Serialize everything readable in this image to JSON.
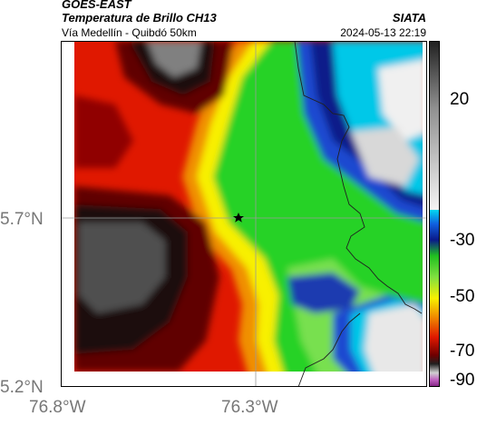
{
  "header": {
    "satellite": "GOES-EAST",
    "product": "Temperatura de Brillo CH13",
    "site": "Vía Medellín - Quibdó 50km",
    "source": "SIATA",
    "datetime": "2024-05-13 22:19"
  },
  "axes": {
    "lat_labels": [
      "5.7°N",
      "5.2°N"
    ],
    "lon_labels": [
      "76.8°W",
      "76.3°W"
    ]
  },
  "colorbar": {
    "labels": [
      "20",
      "-30",
      "-50",
      "-70",
      "-90"
    ]
  },
  "colors": {
    "cold_cloud": "#ffffff",
    "ice": "#00c8e8",
    "deep_blue": "#0a1a8a",
    "green": "#28d228",
    "yellow": "#f8f000",
    "orange": "#f09000",
    "red": "#e01800",
    "dark_red": "#600000",
    "warm_ground": "#303030"
  },
  "map": {
    "marker": "star-icon",
    "border": "country-border"
  }
}
